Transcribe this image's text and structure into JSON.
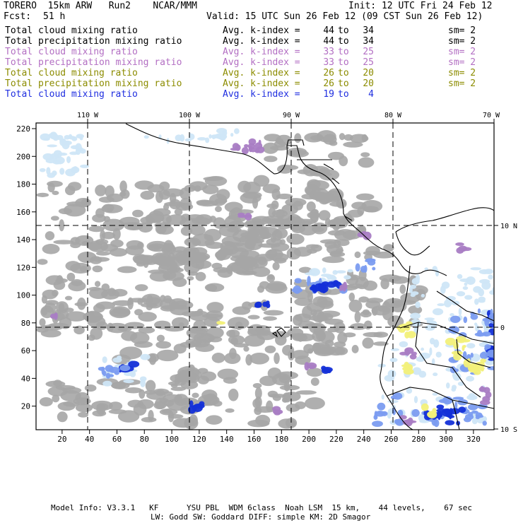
{
  "header": {
    "model": "TORERO  15km ARW   Run2    NCAR/MMM",
    "init": "Init: 12 UTC Fri 24 Feb 12",
    "fcst_label": "Fcst:",
    "fcst_value": "51 h",
    "valid": "Valid: 15 UTC Sun 26 Feb 12 (09 CST Sun 26 Feb 12)"
  },
  "legend": {
    "avg_label": "Avg. k-index =",
    "to_label": "to",
    "items": [
      {
        "name": "Total cloud mixing ratio",
        "k_from": "44",
        "k_to": "34",
        "sm": "sm= 2",
        "color": "#000000"
      },
      {
        "name": "Total precipitation mixing ratio",
        "k_from": "44",
        "k_to": "34",
        "sm": "sm= 2",
        "color": "#000000"
      },
      {
        "name": "Total cloud mixing ratio",
        "k_from": "33",
        "k_to": "25",
        "sm": "sm= 2",
        "color": "#b36fc3"
      },
      {
        "name": "Total precipitation mixing ratio",
        "k_from": "33",
        "k_to": "25",
        "sm": "sm= 2",
        "color": "#b36fc3"
      },
      {
        "name": "Total cloud mixing ratio",
        "k_from": "26",
        "k_to": "20",
        "sm": "sm= 2",
        "color": "#8c8c00"
      },
      {
        "name": "Total precipitation mixing ratio",
        "k_from": "26",
        "k_to": "20",
        "sm": "sm= 2",
        "color": "#8c8c00"
      },
      {
        "name": "Total cloud mixing ratio",
        "k_from": "19",
        "k_to": "4",
        "sm": "",
        "color": "#1f2ee0"
      }
    ]
  },
  "map": {
    "lon_labels": [
      "110 W",
      "100 W",
      "90 W",
      "80 W",
      "70 W"
    ],
    "lat_labels": [
      "10 N",
      "0",
      "10 S"
    ],
    "y_ticks": [
      "220",
      "200",
      "180",
      "160",
      "140",
      "120",
      "100",
      "80",
      "60",
      "40",
      "20"
    ],
    "x_ticks": [
      "20",
      "40",
      "60",
      "80",
      "100",
      "120",
      "140",
      "160",
      "180",
      "200",
      "220",
      "240",
      "260",
      "280",
      "300",
      "320"
    ],
    "colors": {
      "cloud_gray": "#a6a6a6",
      "light_blue": "#cfe6f7",
      "mid_blue": "#7b9cf0",
      "dark_blue": "#1430d8",
      "purple": "#a97dc4",
      "yellow": "#f2f07a",
      "coast": "#000000"
    }
  },
  "footer": {
    "line1": "Model Info: V3.3.1   KF      YSU PBL  WDM 6class  Noah LSM  15 km,    44 levels,    67 sec",
    "line2": "LW: Godd SW: Goddard DIFF: simple KM: 2D Smagor"
  }
}
